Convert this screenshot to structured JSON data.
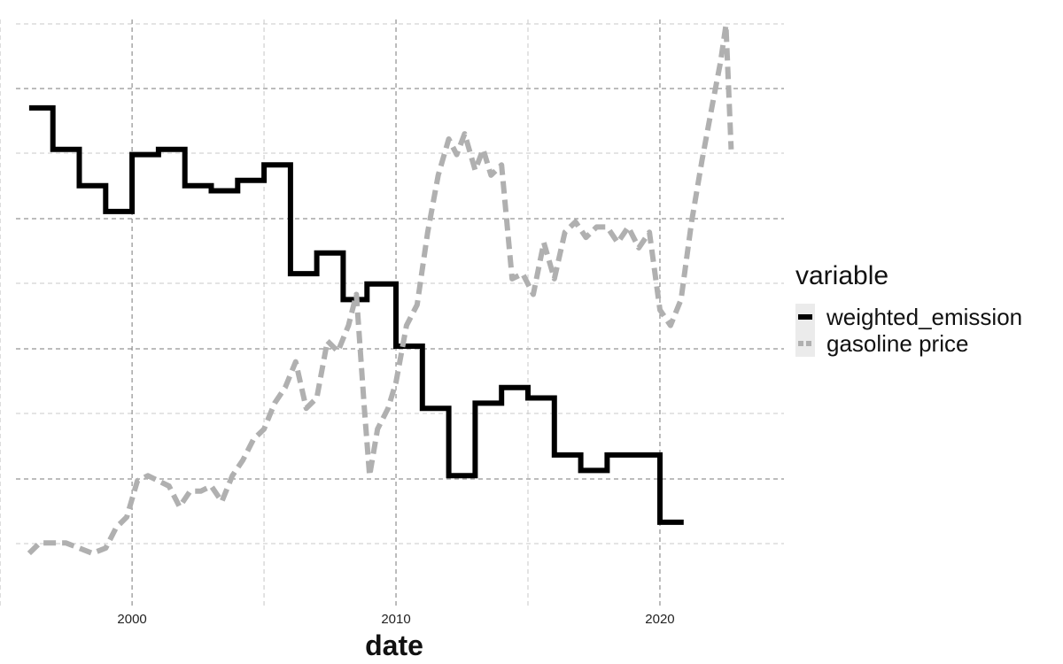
{
  "chart_data": {
    "type": "line",
    "title": "",
    "xlabel": "date",
    "ylabel": "",
    "xlim": [
      1995.6,
      2024.7
    ],
    "ylim": [
      0,
      1
    ],
    "x_ticks": [
      2000,
      2010,
      2020
    ],
    "x_tick_labels": [
      "2000",
      "2010",
      "2020"
    ],
    "grid": true,
    "legend": {
      "title": "variable",
      "placement": "right",
      "entries": [
        "weighted_emission",
        "gasoline price"
      ]
    },
    "colors": {
      "weighted_emission": "#000000",
      "gasoline price": "#b0b0b0",
      "grid_major": "#7a7a7a",
      "grid_minor": "#c8c8c8",
      "legend_key_bg": "#ebebeb"
    },
    "series": [
      {
        "name": "weighted_emission",
        "style": "solid",
        "step": true,
        "x": [
          1996.1,
          1997.0,
          1998.0,
          1999.0,
          2000.0,
          2001.0,
          2002.0,
          2003.0,
          2004.0,
          2005.0,
          2006.0,
          2007.0,
          2008.0,
          2008.9,
          2010.0,
          2011.0,
          2012.0,
          2013.0,
          2014.0,
          2015.0,
          2016.0,
          2017.0,
          2018.0,
          2019.0,
          2020.0,
          2020.9
        ],
        "values": [
          0.86,
          0.78,
          0.71,
          0.66,
          0.77,
          0.78,
          0.71,
          0.7,
          0.72,
          0.75,
          0.54,
          0.58,
          0.49,
          0.52,
          0.4,
          0.28,
          0.15,
          0.29,
          0.32,
          0.3,
          0.19,
          0.16,
          0.19,
          0.19,
          0.06,
          0.06
        ]
      },
      {
        "name": "gasoline price",
        "style": "dashed",
        "step": false,
        "x": [
          1996.1,
          1996.5,
          1997.0,
          1997.5,
          1998.0,
          1998.5,
          1999.0,
          1999.4,
          1999.8,
          2000.2,
          2000.6,
          2001.0,
          2001.4,
          2001.8,
          2002.2,
          2002.6,
          2003.0,
          2003.4,
          2003.8,
          2004.2,
          2004.6,
          2005.0,
          2005.4,
          2005.8,
          2006.2,
          2006.6,
          2007.0,
          2007.4,
          2007.8,
          2008.2,
          2008.5,
          2008.8,
          2009.0,
          2009.3,
          2009.7,
          2010.0,
          2010.4,
          2010.8,
          2011.2,
          2011.6,
          2012.0,
          2012.3,
          2012.6,
          2013.0,
          2013.3,
          2013.6,
          2014.0,
          2014.4,
          2014.8,
          2015.2,
          2015.6,
          2016.0,
          2016.4,
          2016.8,
          2017.2,
          2017.6,
          2018.0,
          2018.4,
          2018.8,
          2019.2,
          2019.6,
          2020.0,
          2020.4,
          2020.8,
          2021.2,
          2021.6,
          2022.0,
          2022.3,
          2022.5,
          2022.7
        ],
        "values": [
          0.0,
          0.02,
          0.02,
          0.02,
          0.01,
          0.0,
          0.01,
          0.05,
          0.07,
          0.14,
          0.15,
          0.14,
          0.13,
          0.09,
          0.12,
          0.12,
          0.13,
          0.1,
          0.15,
          0.18,
          0.22,
          0.24,
          0.29,
          0.32,
          0.37,
          0.28,
          0.3,
          0.41,
          0.39,
          0.44,
          0.5,
          0.28,
          0.15,
          0.24,
          0.28,
          0.33,
          0.44,
          0.48,
          0.62,
          0.73,
          0.8,
          0.77,
          0.81,
          0.74,
          0.78,
          0.73,
          0.75,
          0.53,
          0.54,
          0.5,
          0.6,
          0.53,
          0.62,
          0.64,
          0.61,
          0.63,
          0.63,
          0.6,
          0.63,
          0.59,
          0.62,
          0.47,
          0.44,
          0.49,
          0.64,
          0.76,
          0.87,
          0.95,
          1.02,
          0.78
        ]
      }
    ]
  }
}
